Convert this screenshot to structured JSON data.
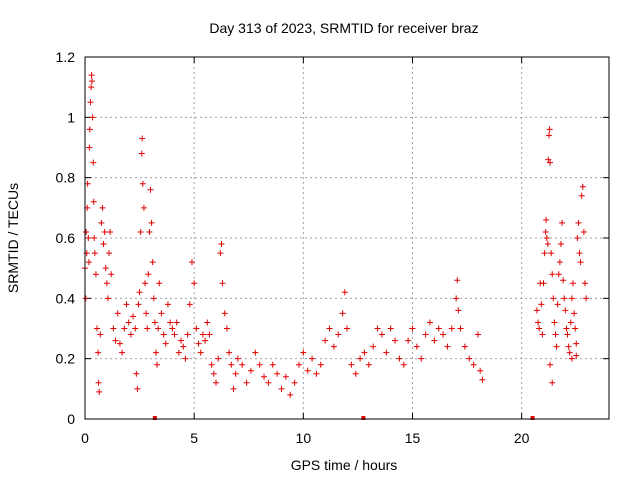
{
  "chart_data": {
    "type": "scatter",
    "title": "Day 313 of 2023, SRMTID for receiver braz",
    "xlabel": "GPS time / hours",
    "ylabel": "SRMTID / TECUs",
    "xlim": [
      0,
      24
    ],
    "ylim": [
      0,
      1.2
    ],
    "xticks": [
      0,
      5,
      10,
      15,
      20
    ],
    "xtick_labels": [
      "0",
      "5",
      "10",
      "15",
      "20"
    ],
    "yticks": [
      0,
      0.2,
      0.4,
      0.6,
      0.8,
      1.0,
      1.2
    ],
    "ytick_labels": [
      "0",
      "0.2",
      "0.4",
      "0.6",
      "0.8",
      "1",
      "1.2"
    ],
    "grid": true,
    "marker": "+",
    "color": "#e00000",
    "series": [
      {
        "name": "SRMTID",
        "points": [
          [
            0.0,
            0.5
          ],
          [
            0.03,
            0.4
          ],
          [
            0.05,
            0.62
          ],
          [
            0.08,
            0.55
          ],
          [
            0.1,
            0.7
          ],
          [
            0.12,
            0.78
          ],
          [
            0.15,
            0.6
          ],
          [
            0.18,
            0.52
          ],
          [
            0.2,
            0.9
          ],
          [
            0.22,
            0.96
          ],
          [
            0.25,
            1.05
          ],
          [
            0.28,
            1.1
          ],
          [
            0.3,
            1.14
          ],
          [
            0.32,
            1.12
          ],
          [
            0.35,
            1.0
          ],
          [
            0.38,
            0.85
          ],
          [
            0.4,
            0.72
          ],
          [
            0.42,
            0.6
          ],
          [
            0.45,
            0.55
          ],
          [
            0.5,
            0.48
          ],
          [
            0.55,
            0.3
          ],
          [
            0.6,
            0.22
          ],
          [
            0.62,
            0.12
          ],
          [
            0.65,
            0.09
          ],
          [
            0.7,
            0.28
          ],
          [
            0.75,
            0.65
          ],
          [
            0.8,
            0.7
          ],
          [
            0.85,
            0.58
          ],
          [
            0.9,
            0.62
          ],
          [
            0.95,
            0.5
          ],
          [
            1.0,
            0.45
          ],
          [
            1.05,
            0.4
          ],
          [
            1.1,
            0.55
          ],
          [
            1.15,
            0.62
          ],
          [
            1.2,
            0.48
          ],
          [
            1.3,
            0.3
          ],
          [
            1.4,
            0.26
          ],
          [
            1.5,
            0.35
          ],
          [
            1.6,
            0.25
          ],
          [
            1.7,
            0.22
          ],
          [
            1.8,
            0.3
          ],
          [
            1.9,
            0.38
          ],
          [
            2.0,
            0.32
          ],
          [
            2.1,
            0.28
          ],
          [
            2.2,
            0.34
          ],
          [
            2.3,
            0.3
          ],
          [
            2.35,
            0.15
          ],
          [
            2.4,
            0.1
          ],
          [
            2.45,
            0.38
          ],
          [
            2.5,
            0.42
          ],
          [
            2.55,
            0.62
          ],
          [
            2.6,
            0.88
          ],
          [
            2.62,
            0.93
          ],
          [
            2.65,
            0.78
          ],
          [
            2.7,
            0.7
          ],
          [
            2.75,
            0.45
          ],
          [
            2.8,
            0.35
          ],
          [
            2.85,
            0.3
          ],
          [
            2.9,
            0.48
          ],
          [
            2.95,
            0.62
          ],
          [
            3.0,
            0.76
          ],
          [
            3.05,
            0.65
          ],
          [
            3.1,
            0.52
          ],
          [
            3.15,
            0.4
          ],
          [
            3.2,
            0.32
          ],
          [
            3.25,
            0.22
          ],
          [
            3.3,
            0.18
          ],
          [
            3.35,
            0.3
          ],
          [
            3.4,
            0.45
          ],
          [
            3.5,
            0.35
          ],
          [
            3.6,
            0.28
          ],
          [
            3.7,
            0.25
          ],
          [
            3.8,
            0.38
          ],
          [
            3.9,
            0.32
          ],
          [
            4.0,
            0.3
          ],
          [
            4.1,
            0.28
          ],
          [
            4.2,
            0.32
          ],
          [
            4.3,
            0.22
          ],
          [
            4.4,
            0.26
          ],
          [
            4.5,
            0.24
          ],
          [
            4.6,
            0.2
          ],
          [
            4.7,
            0.28
          ],
          [
            4.8,
            0.38
          ],
          [
            4.9,
            0.52
          ],
          [
            5.0,
            0.45
          ],
          [
            5.1,
            0.3
          ],
          [
            5.2,
            0.25
          ],
          [
            5.3,
            0.22
          ],
          [
            5.4,
            0.28
          ],
          [
            5.5,
            0.26
          ],
          [
            5.6,
            0.32
          ],
          [
            5.7,
            0.28
          ],
          [
            5.8,
            0.18
          ],
          [
            5.9,
            0.15
          ],
          [
            6.0,
            0.12
          ],
          [
            6.1,
            0.2
          ],
          [
            6.2,
            0.55
          ],
          [
            6.25,
            0.58
          ],
          [
            6.3,
            0.45
          ],
          [
            6.4,
            0.35
          ],
          [
            6.5,
            0.3
          ],
          [
            6.6,
            0.22
          ],
          [
            6.7,
            0.18
          ],
          [
            6.8,
            0.1
          ],
          [
            6.9,
            0.15
          ],
          [
            7.0,
            0.2
          ],
          [
            7.2,
            0.18
          ],
          [
            7.4,
            0.12
          ],
          [
            7.6,
            0.16
          ],
          [
            7.8,
            0.22
          ],
          [
            8.0,
            0.18
          ],
          [
            8.2,
            0.14
          ],
          [
            8.4,
            0.12
          ],
          [
            8.6,
            0.18
          ],
          [
            8.8,
            0.15
          ],
          [
            9.0,
            0.1
          ],
          [
            9.2,
            0.14
          ],
          [
            9.4,
            0.08
          ],
          [
            9.6,
            0.12
          ],
          [
            9.8,
            0.18
          ],
          [
            10.0,
            0.22
          ],
          [
            10.2,
            0.16
          ],
          [
            10.4,
            0.2
          ],
          [
            10.6,
            0.15
          ],
          [
            10.8,
            0.18
          ],
          [
            11.0,
            0.26
          ],
          [
            11.2,
            0.3
          ],
          [
            11.4,
            0.24
          ],
          [
            11.6,
            0.28
          ],
          [
            11.8,
            0.35
          ],
          [
            11.9,
            0.42
          ],
          [
            12.0,
            0.3
          ],
          [
            12.2,
            0.18
          ],
          [
            12.4,
            0.15
          ],
          [
            12.6,
            0.2
          ],
          [
            12.8,
            0.22
          ],
          [
            13.0,
            0.18
          ],
          [
            13.2,
            0.24
          ],
          [
            13.4,
            0.3
          ],
          [
            13.6,
            0.28
          ],
          [
            13.8,
            0.22
          ],
          [
            14.0,
            0.3
          ],
          [
            14.2,
            0.26
          ],
          [
            14.4,
            0.2
          ],
          [
            14.6,
            0.18
          ],
          [
            14.8,
            0.26
          ],
          [
            15.0,
            0.3
          ],
          [
            15.2,
            0.24
          ],
          [
            15.4,
            0.2
          ],
          [
            15.6,
            0.28
          ],
          [
            15.8,
            0.32
          ],
          [
            16.0,
            0.26
          ],
          [
            16.2,
            0.3
          ],
          [
            16.4,
            0.28
          ],
          [
            16.6,
            0.24
          ],
          [
            16.8,
            0.3
          ],
          [
            17.0,
            0.4
          ],
          [
            17.05,
            0.46
          ],
          [
            17.1,
            0.36
          ],
          [
            17.2,
            0.3
          ],
          [
            17.4,
            0.24
          ],
          [
            17.6,
            0.2
          ],
          [
            17.8,
            0.18
          ],
          [
            18.0,
            0.28
          ],
          [
            18.1,
            0.16
          ],
          [
            18.2,
            0.13
          ],
          [
            20.7,
            0.36
          ],
          [
            20.75,
            0.32
          ],
          [
            20.8,
            0.3
          ],
          [
            20.85,
            0.45
          ],
          [
            20.9,
            0.38
          ],
          [
            20.95,
            0.28
          ],
          [
            21.0,
            0.45
          ],
          [
            21.05,
            0.55
          ],
          [
            21.1,
            0.62
          ],
          [
            21.12,
            0.66
          ],
          [
            21.15,
            0.6
          ],
          [
            21.2,
            0.58
          ],
          [
            21.22,
            0.86
          ],
          [
            21.25,
            0.94
          ],
          [
            21.28,
            0.96
          ],
          [
            21.3,
            0.85
          ],
          [
            21.35,
            0.55
          ],
          [
            21.4,
            0.48
          ],
          [
            21.45,
            0.4
          ],
          [
            21.5,
            0.32
          ],
          [
            21.55,
            0.28
          ],
          [
            21.6,
            0.24
          ],
          [
            21.65,
            0.38
          ],
          [
            21.7,
            0.48
          ],
          [
            21.75,
            0.52
          ],
          [
            21.8,
            0.58
          ],
          [
            21.85,
            0.65
          ],
          [
            21.9,
            0.46
          ],
          [
            21.95,
            0.4
          ],
          [
            22.0,
            0.36
          ],
          [
            22.05,
            0.3
          ],
          [
            22.1,
            0.28
          ],
          [
            22.15,
            0.24
          ],
          [
            22.2,
            0.22
          ],
          [
            22.25,
            0.32
          ],
          [
            22.3,
            0.4
          ],
          [
            22.35,
            0.45
          ],
          [
            22.4,
            0.35
          ],
          [
            22.45,
            0.3
          ],
          [
            22.5,
            0.25
          ],
          [
            22.55,
            0.6
          ],
          [
            22.6,
            0.65
          ],
          [
            22.65,
            0.55
          ],
          [
            22.7,
            0.52
          ],
          [
            22.75,
            0.74
          ],
          [
            22.8,
            0.77
          ],
          [
            22.85,
            0.62
          ],
          [
            22.9,
            0.45
          ],
          [
            22.95,
            0.4
          ],
          [
            21.3,
            0.18
          ],
          [
            21.4,
            0.12
          ],
          [
            22.3,
            0.2
          ],
          [
            22.5,
            0.21
          ]
        ]
      }
    ],
    "axis_markers": [
      3.2,
      12.75,
      20.5
    ]
  }
}
